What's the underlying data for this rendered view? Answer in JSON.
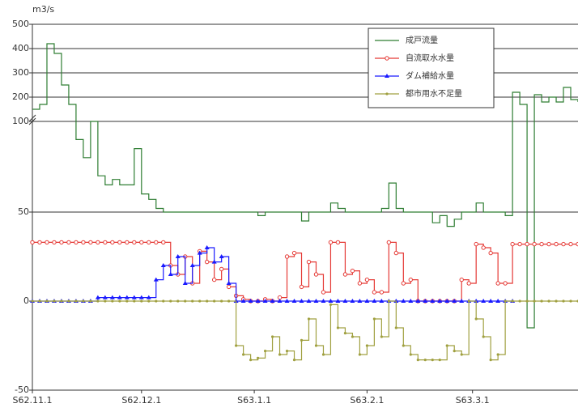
{
  "chart_data": {
    "type": "line",
    "y_label": "m3/s",
    "x": [
      0,
      2,
      4,
      6,
      8,
      10,
      12,
      14,
      16,
      18,
      20,
      22,
      24,
      26,
      28,
      30,
      32,
      34,
      36,
      38,
      40,
      42,
      44,
      46,
      48,
      50,
      52,
      54,
      56,
      58,
      60,
      62,
      64,
      66,
      68,
      70,
      72,
      74,
      76,
      78,
      80,
      82,
      84,
      86,
      88,
      90,
      92,
      94,
      96,
      98,
      100,
      102,
      104,
      106,
      108,
      110,
      112,
      114,
      116,
      118,
      120,
      122,
      124,
      126,
      128,
      130,
      132,
      134,
      136,
      138,
      140,
      142,
      144,
      146,
      148,
      150
    ],
    "xlim": [
      0,
      150
    ],
    "xticks": [
      {
        "value": 0,
        "label": "S62.11.1"
      },
      {
        "value": 30,
        "label": "S62.12.1"
      },
      {
        "value": 61,
        "label": "S63.1.1"
      },
      {
        "value": 92,
        "label": "S63.2.1"
      },
      {
        "value": 121,
        "label": "S63.3.1"
      }
    ],
    "ylim": [
      -50,
      500
    ],
    "yticks": [
      -50,
      0,
      50,
      100,
      200,
      300,
      400,
      500
    ],
    "grid": true,
    "legend": "upper right",
    "series": [
      {
        "name": "成戸流量",
        "color": "#2e7d32",
        "marker": "none",
        "values": [
          150,
          170,
          420,
          380,
          250,
          170,
          90,
          80,
          100,
          70,
          65,
          68,
          65,
          65,
          85,
          60,
          57,
          52,
          50,
          50,
          50,
          50,
          50,
          50,
          50,
          50,
          50,
          50,
          50,
          50,
          50,
          48,
          50,
          50,
          50,
          50,
          50,
          45,
          50,
          50,
          50,
          55,
          52,
          50,
          50,
          50,
          50,
          50,
          52,
          66,
          52,
          50,
          50,
          50,
          50,
          44,
          48,
          42,
          46,
          50,
          50,
          55,
          50,
          50,
          50,
          48,
          220,
          170,
          -15,
          210,
          180,
          200,
          180,
          240,
          190,
          180
        ]
      },
      {
        "name": "自流取水水量",
        "color": "#e53935",
        "marker": "circle",
        "values": [
          33,
          33,
          33,
          33,
          33,
          33,
          33,
          33,
          33,
          33,
          33,
          33,
          33,
          33,
          33,
          33,
          33,
          33,
          33,
          20,
          15,
          25,
          10,
          28,
          22,
          12,
          18,
          8,
          3,
          1,
          0,
          0,
          1,
          0,
          2,
          25,
          27,
          8,
          22,
          15,
          5,
          33,
          33,
          15,
          17,
          10,
          12,
          5,
          5,
          33,
          27,
          10,
          12,
          0,
          0,
          0,
          0,
          0,
          0,
          12,
          10,
          32,
          30,
          27,
          10,
          10,
          32,
          32,
          32,
          32,
          32,
          32,
          32,
          32,
          32,
          32
        ]
      },
      {
        "name": "ダム補給水量",
        "color": "#1a1aff",
        "marker": "triangle",
        "values": [
          0,
          0,
          0,
          0,
          0,
          0,
          0,
          0,
          0,
          2,
          2,
          2,
          2,
          2,
          2,
          2,
          2,
          12,
          20,
          15,
          25,
          10,
          20,
          27,
          30,
          22,
          25,
          10,
          0,
          0,
          0,
          0,
          0,
          0,
          0,
          0,
          0,
          0,
          0,
          0,
          0,
          0,
          0,
          0,
          0,
          0,
          0,
          0,
          0,
          0,
          0,
          0,
          0,
          0,
          0,
          0,
          0,
          0,
          0,
          0,
          0,
          0,
          0,
          0,
          0,
          0,
          0,
          null,
          null,
          null,
          null,
          null,
          null,
          null,
          null,
          null
        ]
      },
      {
        "name": "都市用水不足量",
        "color": "#a0a040",
        "marker": "dot",
        "values": [
          0,
          0,
          0,
          0,
          0,
          0,
          0,
          0,
          0,
          0,
          0,
          0,
          0,
          0,
          0,
          0,
          0,
          0,
          0,
          0,
          0,
          0,
          0,
          0,
          0,
          0,
          0,
          0,
          -25,
          -30,
          -33,
          -32,
          -28,
          -20,
          -30,
          -28,
          -33,
          -22,
          -10,
          -25,
          -30,
          -2,
          -15,
          -18,
          -20,
          -30,
          -25,
          -10,
          -20,
          0,
          -15,
          -25,
          -30,
          -33,
          -33,
          -33,
          -33,
          -25,
          -28,
          -30,
          0,
          -10,
          -20,
          -33,
          -30,
          0,
          0,
          0,
          0,
          0,
          0,
          0,
          0,
          0,
          0,
          0
        ]
      }
    ]
  }
}
